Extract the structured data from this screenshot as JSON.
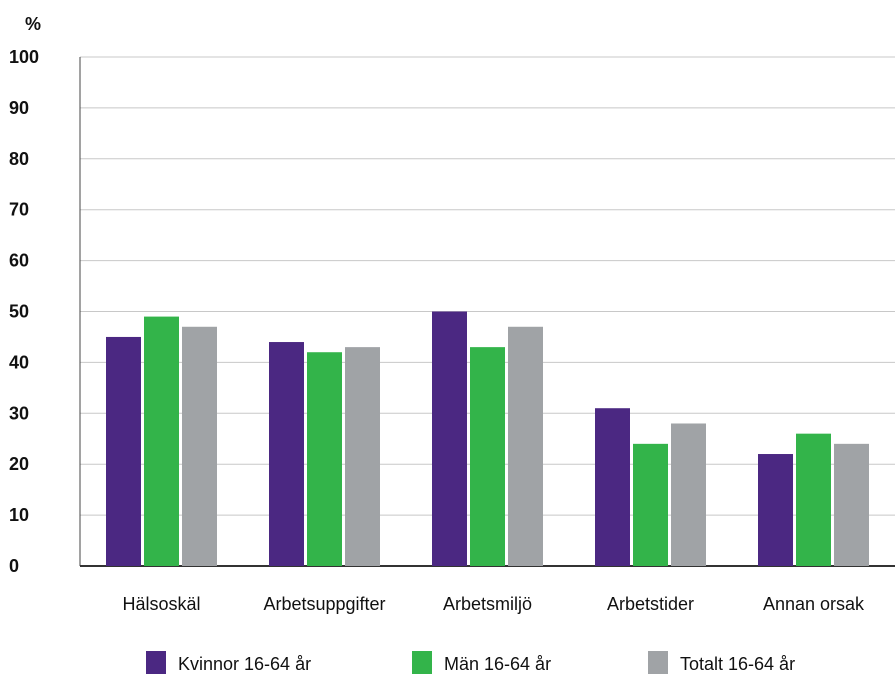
{
  "chart_data": {
    "type": "bar",
    "y_unit_label": "%",
    "categories": [
      "Hälsoskäl",
      "Arbetsuppgifter",
      "Arbetsmiljö",
      "Arbetstider",
      "Annan orsak"
    ],
    "series": [
      {
        "name": "Kvinnor 16-64 år",
        "color": "#4b2882",
        "values": [
          45,
          44,
          50,
          31,
          22
        ]
      },
      {
        "name": "Män 16-64 år",
        "color": "#33b44a",
        "values": [
          49,
          42,
          43,
          24,
          26
        ]
      },
      {
        "name": "Totalt 16-64 år",
        "color": "#a0a3a6",
        "values": [
          47,
          43,
          47,
          28,
          24
        ]
      }
    ],
    "ylim": [
      0,
      100
    ],
    "yticks": [
      "0",
      "10",
      "20",
      "30",
      "40",
      "50",
      "60",
      "70",
      "80",
      "90",
      "100"
    ],
    "grid": true,
    "legend_position": "bottom"
  }
}
